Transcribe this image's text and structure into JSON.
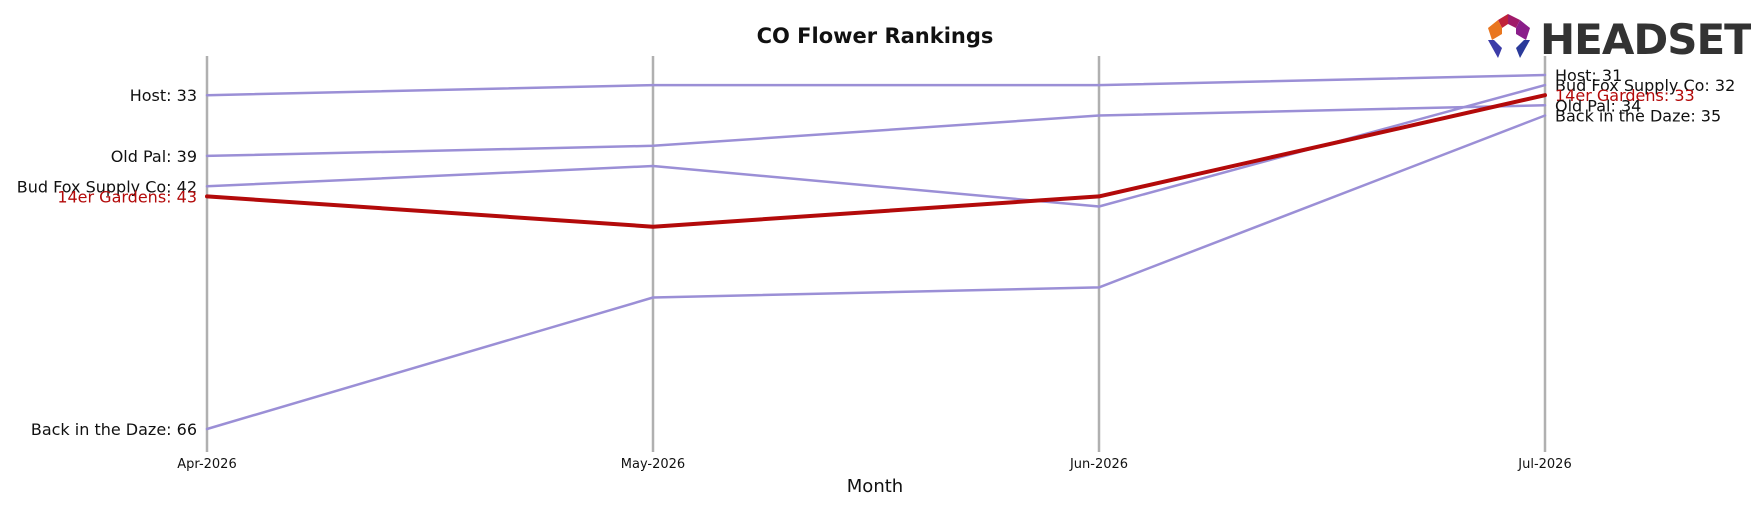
{
  "chart_data": {
    "type": "line",
    "title": "CO Flower Rankings",
    "xlabel": "Month",
    "ylabel": "",
    "x": [
      "Apr-2026",
      "May-2026",
      "Jun-2026",
      "Jul-2026"
    ],
    "y_inverted": true,
    "ylim": [
      29,
      67
    ],
    "grid": "vertical",
    "legend": "none (labels at line ends)",
    "series": [
      {
        "name": "Host",
        "values": [
          33,
          32,
          32,
          31
        ],
        "highlight": false,
        "start_label": "Host: 33",
        "end_label": "Host: 31"
      },
      {
        "name": "Old Pal",
        "values": [
          39,
          38,
          35,
          34
        ],
        "highlight": false,
        "start_label": "Old Pal: 39",
        "end_label": "Old Pal: 34"
      },
      {
        "name": "Bud Fox Supply Co",
        "values": [
          42,
          40,
          44,
          32
        ],
        "highlight": false,
        "start_label": "Bud Fox Supply Co: 42",
        "end_label": "Bud Fox Supply Co: 32"
      },
      {
        "name": "14er Gardens",
        "values": [
          43,
          46,
          43,
          33
        ],
        "highlight": true,
        "start_label": "14er Gardens: 43",
        "end_label": "14er Gardens: 33"
      },
      {
        "name": "Back in the Daze",
        "values": [
          66,
          53,
          52,
          35
        ],
        "highlight": false,
        "start_label": "Back in the Daze: 66",
        "end_label": "Back in the Daze: 35"
      }
    ]
  },
  "logo": {
    "text": "HEADSET"
  },
  "colors": {
    "series": "#9b8fd6",
    "highlight": "#b30a0a",
    "gridline": "#b0b0b0",
    "label": "#111111"
  }
}
